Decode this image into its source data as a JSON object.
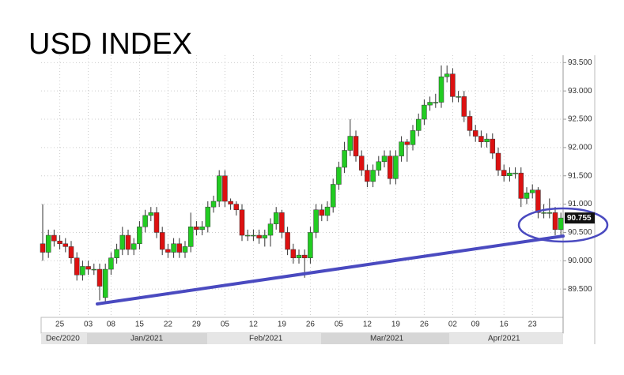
{
  "chart_data": {
    "type": "candlestick",
    "title": "USD INDEX",
    "categories": [
      null,
      null,
      null,
      "25",
      null,
      null,
      null,
      null,
      "03",
      null,
      null,
      null,
      "08",
      null,
      null,
      null,
      null,
      "15",
      null,
      null,
      null,
      null,
      "22",
      null,
      null,
      null,
      null,
      "29",
      null,
      null,
      null,
      null,
      "05",
      null,
      null,
      null,
      null,
      "12",
      null,
      null,
      null,
      null,
      "19",
      null,
      null,
      null,
      null,
      "26",
      null,
      null,
      null,
      null,
      "05",
      null,
      null,
      null,
      null,
      "12",
      null,
      null,
      null,
      null,
      "19",
      null,
      null,
      null,
      null,
      "26",
      null,
      null,
      null,
      null,
      "02",
      null,
      null,
      null,
      "09",
      null,
      null,
      null,
      null,
      "16",
      null,
      null,
      null,
      null,
      "23",
      null,
      null,
      null,
      null,
      null
    ],
    "month_labels": [
      "Dec/2020",
      "Jan/2021",
      "Feb/2021",
      "Mar/2021",
      "Apr/2021"
    ],
    "open": [
      90.3,
      90.15,
      90.45,
      90.35,
      90.3,
      90.25,
      90.05,
      89.75,
      89.9,
      89.85,
      89.85,
      89.35,
      89.85,
      90.05,
      90.2,
      90.45,
      90.2,
      90.3,
      90.6,
      90.8,
      90.85,
      90.5,
      90.2,
      90.15,
      90.3,
      90.15,
      90.25,
      90.6,
      90.55,
      90.6,
      90.95,
      91.05,
      91.5,
      91.05,
      91.0,
      90.9,
      90.45,
      90.45,
      90.45,
      90.4,
      90.45,
      90.65,
      90.85,
      90.5,
      90.2,
      90.05,
      90.1,
      90.05,
      90.5,
      90.9,
      90.8,
      90.95,
      91.35,
      91.65,
      91.95,
      92.2,
      91.85,
      91.6,
      91.4,
      91.6,
      91.75,
      91.85,
      91.45,
      91.85,
      92.1,
      92.05,
      92.3,
      92.5,
      92.75,
      92.8,
      92.8,
      93.25,
      93.3,
      92.9,
      92.9,
      92.55,
      92.3,
      92.2,
      92.1,
      92.15,
      91.9,
      91.6,
      91.5,
      91.55,
      91.55,
      91.1,
      91.2,
      91.25,
      90.85,
      90.85,
      90.85,
      90.55
    ],
    "high": [
      91.0,
      90.55,
      90.55,
      90.45,
      90.4,
      90.35,
      90.15,
      90.0,
      90.0,
      89.95,
      89.95,
      89.95,
      90.15,
      90.3,
      90.6,
      90.55,
      90.4,
      90.7,
      90.9,
      90.95,
      90.95,
      90.6,
      90.3,
      90.4,
      90.4,
      90.35,
      90.85,
      90.7,
      90.7,
      91.05,
      91.15,
      91.6,
      91.6,
      91.1,
      91.05,
      91.0,
      90.55,
      90.55,
      90.55,
      90.55,
      90.75,
      90.95,
      90.9,
      90.6,
      90.3,
      90.2,
      90.2,
      90.6,
      91.0,
      91.0,
      91.05,
      91.45,
      91.75,
      92.1,
      92.5,
      92.3,
      91.95,
      91.7,
      91.7,
      91.85,
      91.95,
      91.95,
      91.95,
      92.2,
      92.15,
      92.4,
      92.6,
      92.85,
      92.9,
      92.95,
      93.45,
      93.45,
      93.4,
      93.0,
      93.0,
      92.65,
      92.4,
      92.3,
      92.25,
      92.25,
      92.0,
      91.7,
      91.65,
      91.65,
      91.65,
      91.3,
      91.35,
      91.3,
      91.0,
      91.1,
      90.95,
      90.85
    ],
    "low": [
      90.0,
      90.05,
      90.25,
      90.2,
      90.15,
      89.95,
      89.65,
      89.65,
      89.75,
      89.75,
      89.3,
      89.25,
      89.75,
      89.95,
      90.1,
      90.1,
      90.1,
      90.2,
      90.5,
      90.7,
      90.4,
      90.1,
      90.05,
      90.05,
      90.05,
      90.05,
      90.15,
      90.45,
      90.45,
      90.5,
      90.85,
      90.95,
      90.95,
      90.9,
      90.8,
      90.35,
      90.35,
      90.35,
      90.3,
      90.25,
      90.25,
      90.55,
      90.4,
      90.1,
      89.95,
      89.95,
      89.7,
      89.95,
      90.4,
      90.7,
      90.7,
      90.85,
      91.25,
      91.55,
      91.85,
      91.75,
      91.5,
      91.3,
      91.3,
      91.5,
      91.65,
      91.35,
      91.35,
      91.75,
      91.75,
      91.95,
      92.2,
      92.4,
      92.65,
      92.7,
      92.7,
      93.15,
      92.8,
      92.8,
      92.45,
      92.2,
      92.1,
      92.0,
      92.0,
      91.8,
      91.5,
      91.4,
      91.4,
      91.45,
      90.95,
      91.0,
      91.1,
      90.75,
      90.75,
      90.75,
      90.45,
      90.45
    ],
    "close": [
      90.15,
      90.45,
      90.35,
      90.3,
      90.25,
      90.05,
      89.75,
      89.9,
      89.85,
      89.85,
      89.55,
      89.85,
      90.05,
      90.2,
      90.45,
      90.2,
      90.3,
      90.6,
      90.8,
      90.85,
      90.5,
      90.2,
      90.15,
      90.3,
      90.15,
      90.25,
      90.6,
      90.55,
      90.6,
      90.95,
      91.05,
      91.5,
      91.05,
      91.0,
      90.9,
      90.45,
      90.45,
      90.45,
      90.4,
      90.45,
      90.65,
      90.85,
      90.5,
      90.2,
      90.05,
      90.1,
      90.05,
      90.5,
      90.9,
      90.8,
      90.95,
      91.35,
      91.65,
      91.95,
      92.2,
      91.85,
      91.6,
      91.4,
      91.6,
      91.75,
      91.85,
      91.45,
      91.85,
      92.1,
      92.05,
      92.3,
      92.5,
      92.75,
      92.8,
      92.8,
      93.25,
      93.3,
      92.9,
      92.9,
      92.55,
      92.3,
      92.2,
      92.1,
      92.15,
      91.9,
      91.6,
      91.5,
      91.55,
      91.55,
      91.1,
      91.2,
      91.25,
      90.85,
      90.85,
      90.85,
      90.55,
      90.755
    ],
    "up_color": "#22cc22",
    "down_color": "#dd1111",
    "last_price": 90.755,
    "ylim": [
      89.0,
      93.63
    ],
    "yticks": [
      {
        "value": 89.5,
        "label": "89.500"
      },
      {
        "value": 90.0,
        "label": "90.000"
      },
      {
        "value": 90.5,
        "label": "90.500"
      },
      {
        "value": 91.0,
        "label": "91.000"
      },
      {
        "value": 91.5,
        "label": "91.500"
      },
      {
        "value": 92.0,
        "label": "92.000"
      },
      {
        "value": 92.5,
        "label": "92.500"
      },
      {
        "value": 93.0,
        "label": "93.000"
      },
      {
        "value": 93.5,
        "label": "93.500"
      }
    ],
    "grid": true
  }
}
